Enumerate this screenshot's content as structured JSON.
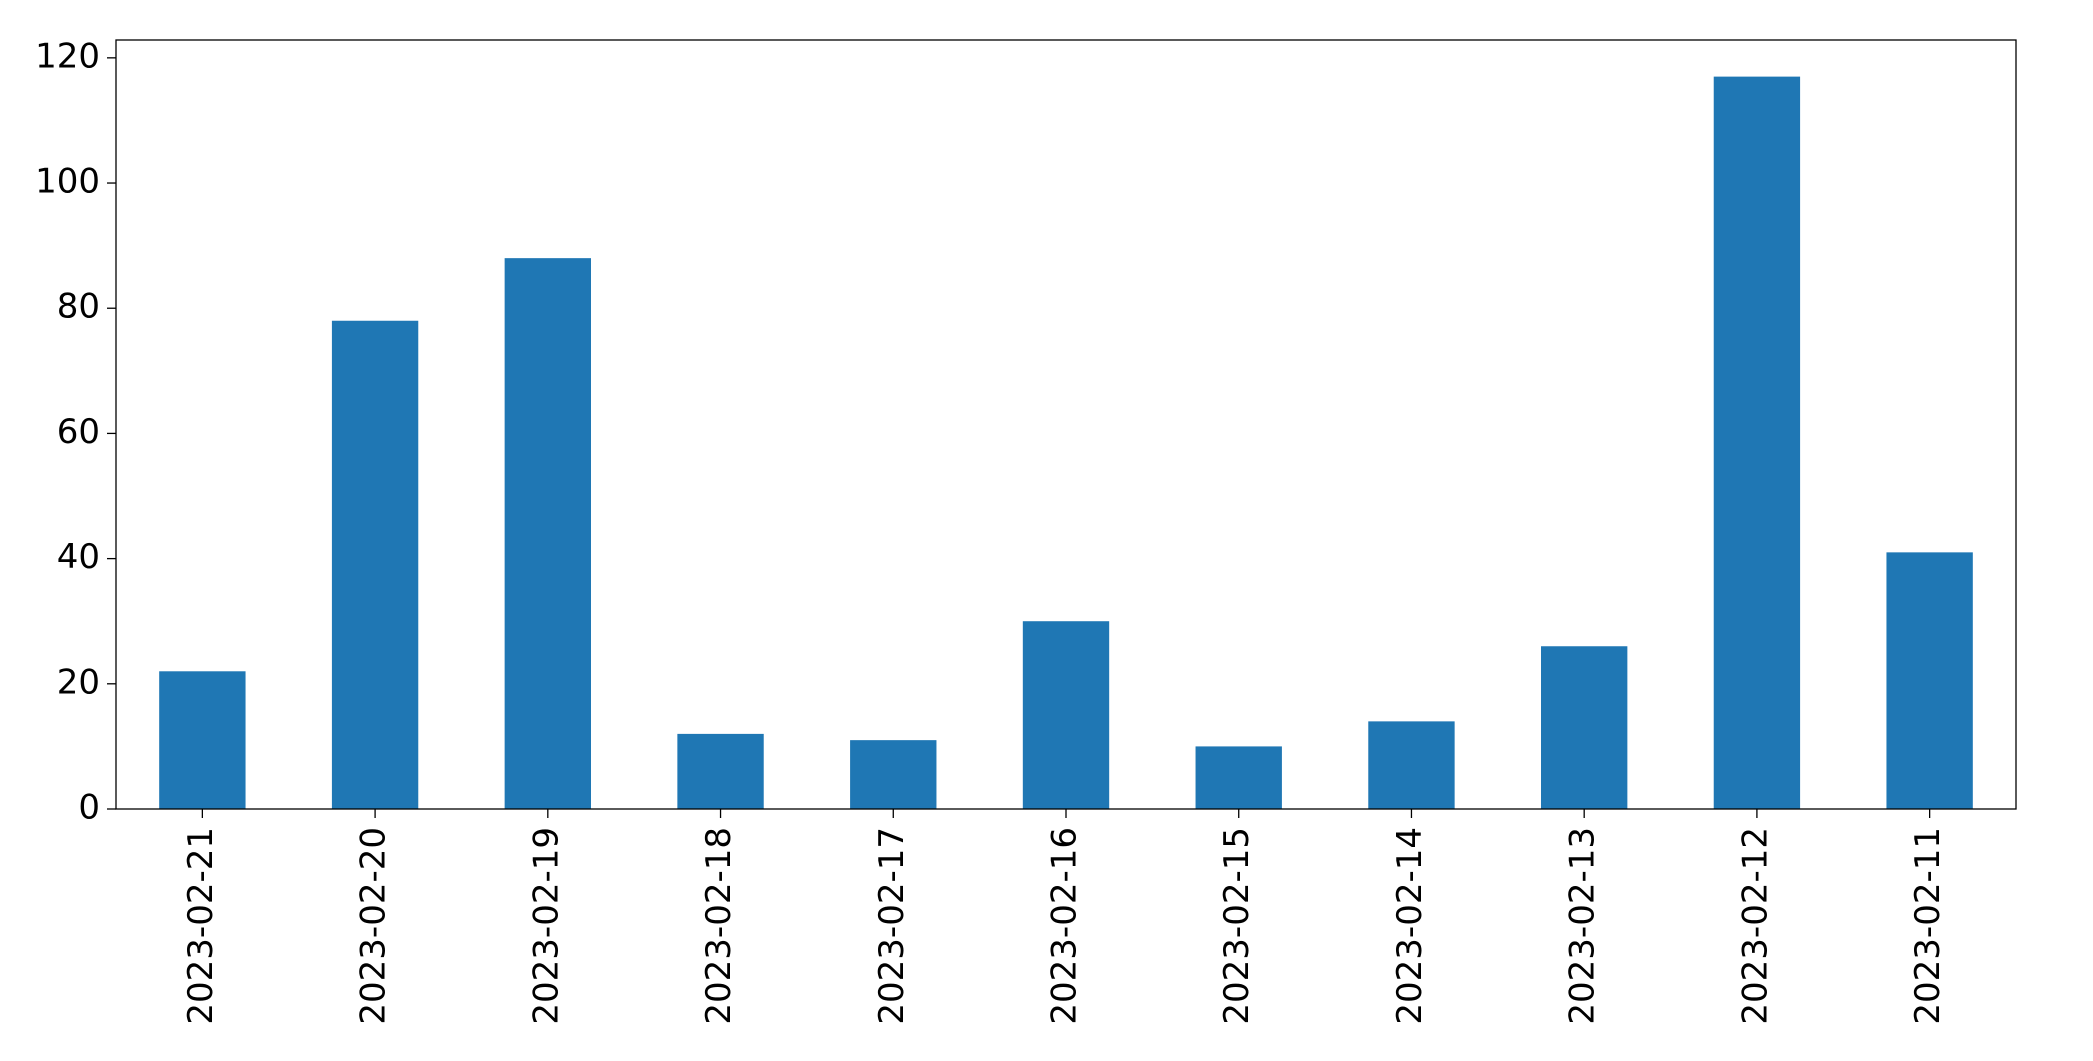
{
  "chart_data": {
    "type": "bar",
    "categories": [
      "2023-02-21",
      "2023-02-20",
      "2023-02-19",
      "2023-02-18",
      "2023-02-17",
      "2023-02-16",
      "2023-02-15",
      "2023-02-14",
      "2023-02-13",
      "2023-02-12",
      "2023-02-11"
    ],
    "values": [
      22,
      78,
      88,
      12,
      11,
      30,
      10,
      14,
      26,
      117,
      41
    ],
    "color": "#1f77b4",
    "ylim": [
      0,
      122.85
    ],
    "yticks": [
      0,
      20,
      40,
      60,
      80,
      100,
      120
    ],
    "grid": false
  }
}
